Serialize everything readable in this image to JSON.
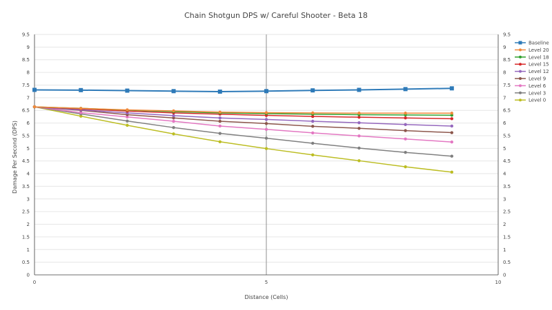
{
  "chart_data": {
    "type": "line",
    "title": "Chain Shotgun DPS w/ Careful Shooter - Beta 18",
    "xlabel": "Distance (Cells)",
    "ylabel": "Damage Per Second (DPS)",
    "xlim": [
      0,
      10
    ],
    "ylim": [
      0,
      9.5
    ],
    "x_ticks": [
      0,
      5,
      10
    ],
    "y_ticks": [
      0,
      0.5,
      1,
      1.5,
      2,
      2.5,
      3,
      3.5,
      4,
      4.5,
      5,
      5.5,
      6,
      6.5,
      7,
      7.5,
      8,
      8.5,
      9,
      9.5
    ],
    "right_axis": true,
    "grid": true,
    "legend_position": "right",
    "x": [
      0,
      1,
      2,
      3,
      4,
      5,
      6,
      7,
      8,
      9
    ],
    "series": [
      {
        "name": "Baseline",
        "color": "#2e7ab8",
        "marker": "square",
        "values": [
          7.31,
          7.3,
          7.28,
          7.26,
          7.24,
          7.26,
          7.29,
          7.31,
          7.34,
          7.37
        ]
      },
      {
        "name": "Level 20",
        "color": "#f0883a",
        "marker": "circle",
        "values": [
          6.64,
          6.58,
          6.52,
          6.48,
          6.43,
          6.41,
          6.4,
          6.39,
          6.39,
          6.39
        ]
      },
      {
        "name": "Level 18",
        "color": "#2ea02c",
        "marker": "circle",
        "values": [
          6.64,
          6.58,
          6.51,
          6.45,
          6.4,
          6.37,
          6.35,
          6.33,
          6.32,
          6.31
        ]
      },
      {
        "name": "Level 15",
        "color": "#d62728",
        "marker": "circle",
        "values": [
          6.64,
          6.56,
          6.47,
          6.4,
          6.35,
          6.3,
          6.26,
          6.23,
          6.2,
          6.17
        ]
      },
      {
        "name": "Level 12",
        "color": "#9467bd",
        "marker": "circle",
        "values": [
          6.64,
          6.52,
          6.4,
          6.29,
          6.2,
          6.14,
          6.07,
          6.01,
          5.94,
          5.88
        ]
      },
      {
        "name": "Level 9",
        "color": "#8c564b",
        "marker": "circle",
        "values": [
          6.64,
          6.5,
          6.33,
          6.2,
          6.07,
          5.98,
          5.87,
          5.79,
          5.7,
          5.62
        ]
      },
      {
        "name": "Level 6",
        "color": "#e377c2",
        "marker": "circle",
        "values": [
          6.64,
          6.41,
          6.24,
          6.07,
          5.88,
          5.75,
          5.61,
          5.49,
          5.37,
          5.25
        ]
      },
      {
        "name": "Level 3",
        "color": "#7f7f7f",
        "marker": "circle",
        "values": [
          6.64,
          6.36,
          6.08,
          5.82,
          5.59,
          5.4,
          5.2,
          5.01,
          4.84,
          4.69
        ]
      },
      {
        "name": "Level 0",
        "color": "#bcbd22",
        "marker": "circle",
        "values": [
          6.64,
          6.27,
          5.91,
          5.57,
          5.26,
          4.99,
          4.74,
          4.51,
          4.27,
          4.06
        ]
      }
    ]
  }
}
